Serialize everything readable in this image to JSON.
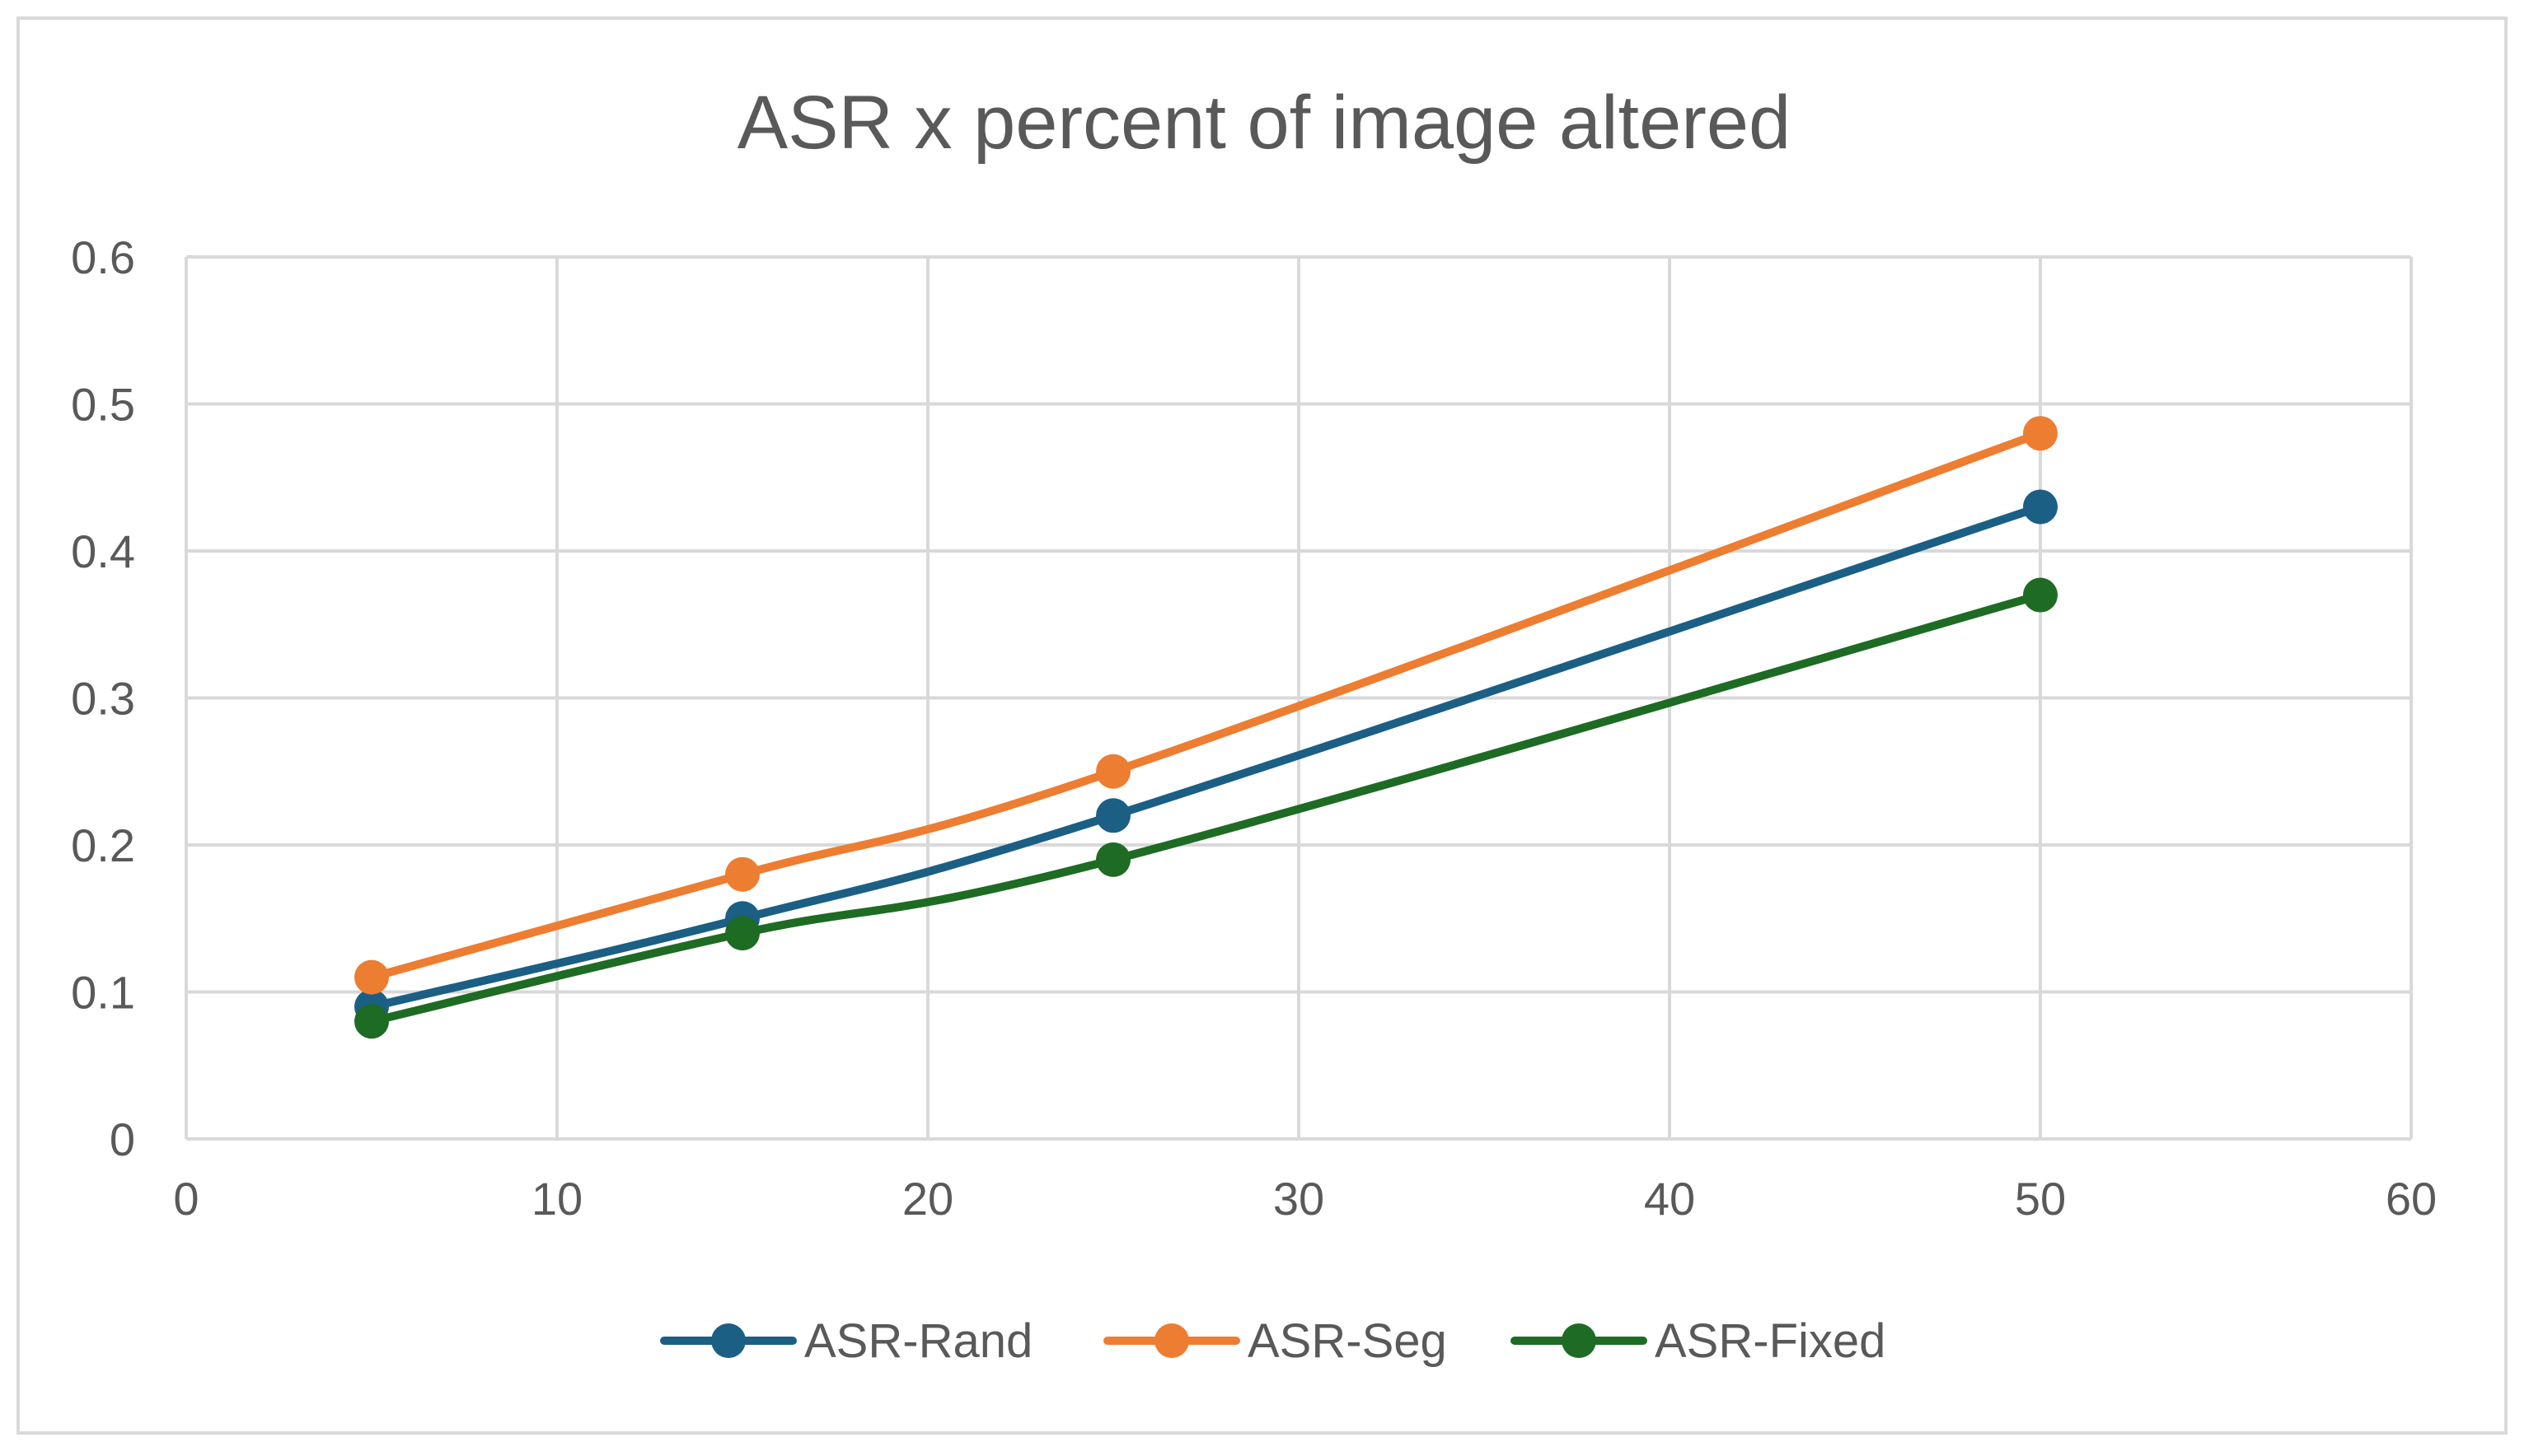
{
  "chart_data": {
    "type": "scatter",
    "title": "ASR x percent of image altered",
    "xlabel": "",
    "ylabel": "",
    "xlim": [
      0,
      60
    ],
    "ylim": [
      0,
      0.6
    ],
    "xticks": [
      "0",
      "10",
      "20",
      "30",
      "40",
      "50",
      "60"
    ],
    "yticks": [
      "0",
      "0.1",
      "0.2",
      "0.3",
      "0.4",
      "0.5",
      "0.6"
    ],
    "grid": true,
    "legend_position": "bottom",
    "lines": "smoothed-with-markers",
    "series": [
      {
        "name": "ASR-Rand",
        "color": "#1b5f84",
        "x": [
          5,
          15,
          25,
          50
        ],
        "y": [
          0.09,
          0.15,
          0.22,
          0.43
        ]
      },
      {
        "name": "ASR-Seg",
        "color": "#ed7d31",
        "x": [
          5,
          15,
          25,
          50
        ],
        "y": [
          0.11,
          0.18,
          0.25,
          0.48
        ]
      },
      {
        "name": "ASR-Fixed",
        "color": "#1e6b24",
        "x": [
          5,
          15,
          25,
          50
        ],
        "y": [
          0.08,
          0.14,
          0.19,
          0.37
        ]
      }
    ]
  }
}
